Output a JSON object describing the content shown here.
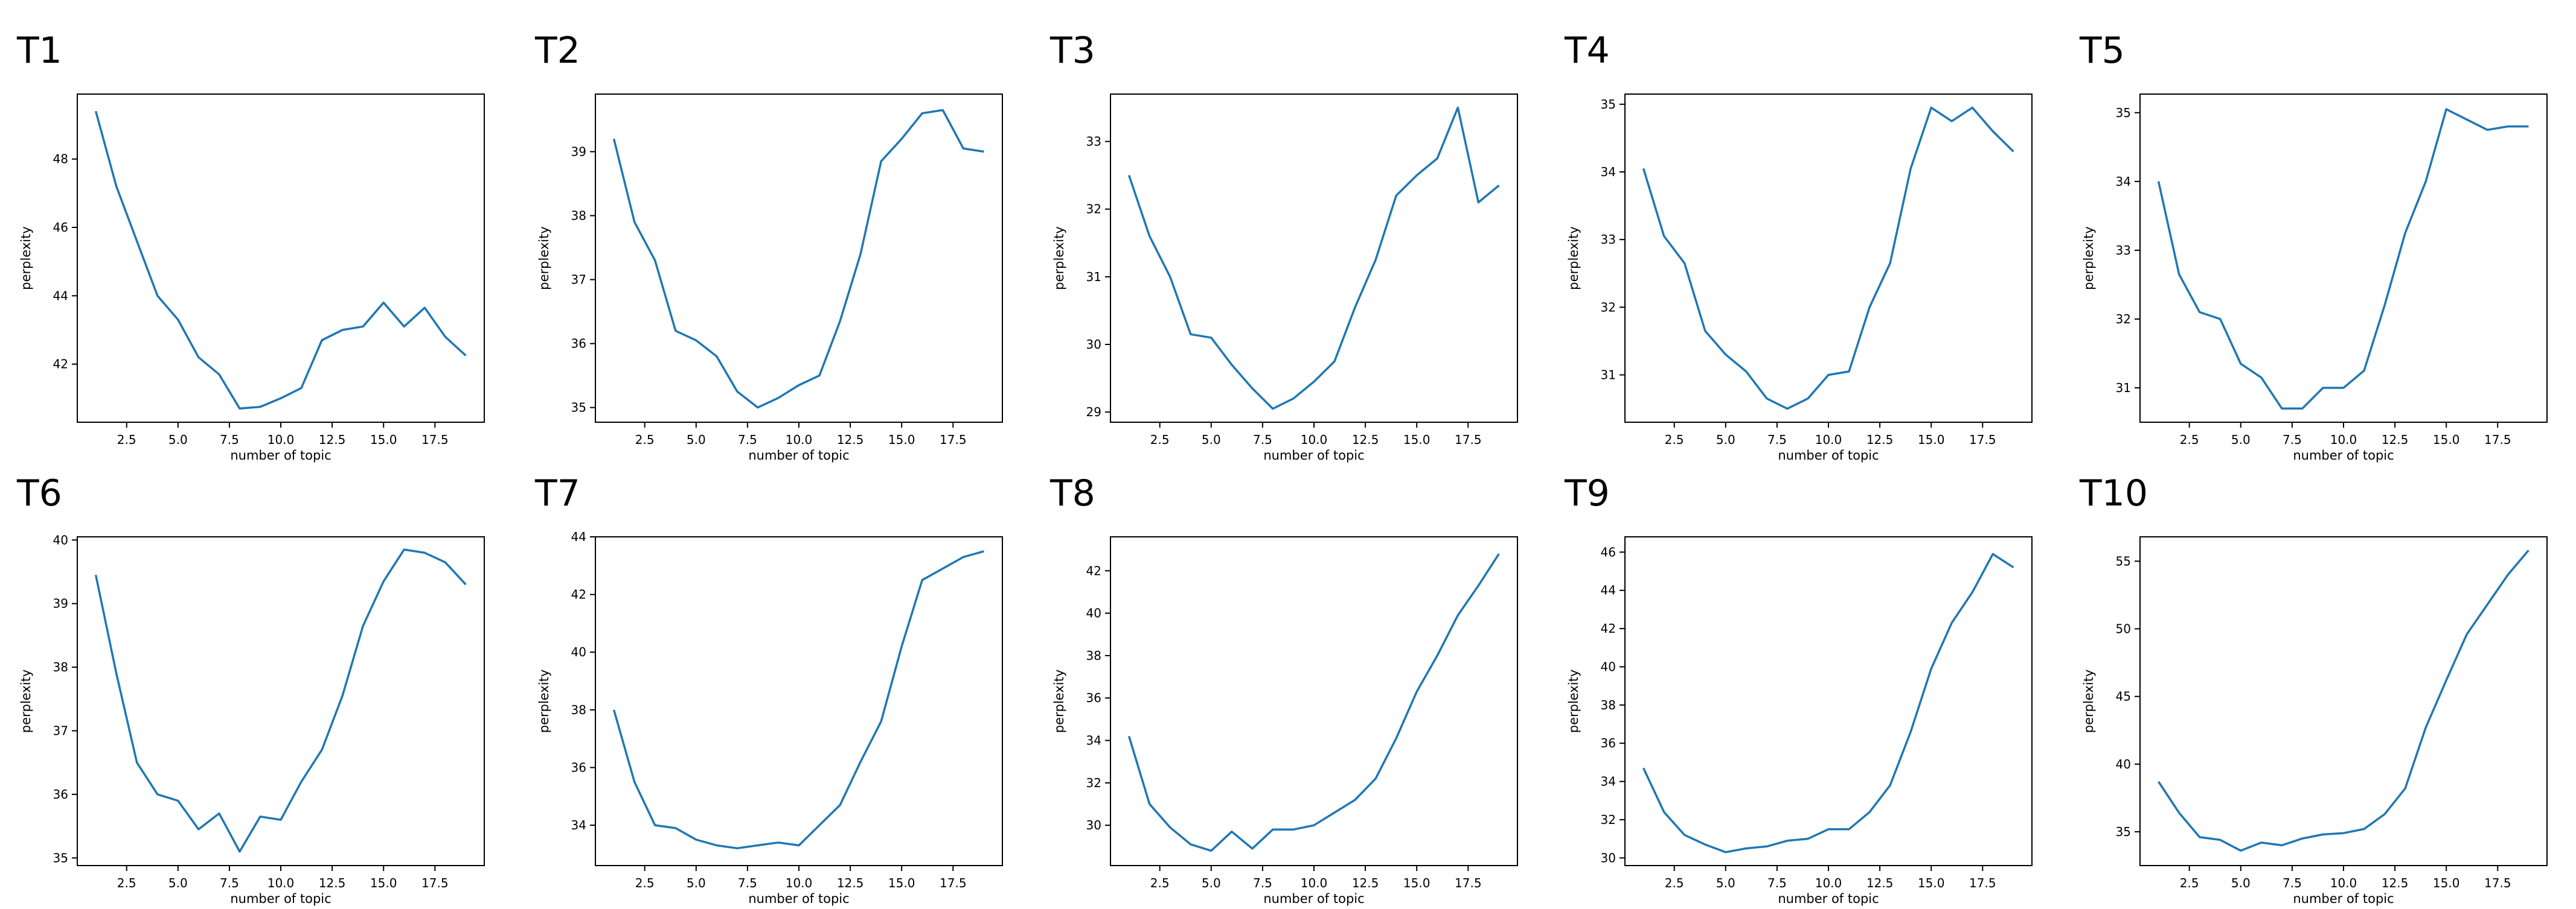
{
  "figure": {
    "line_color": "#1f77b4"
  },
  "chart_data": [
    {
      "type": "line",
      "title": "T1",
      "xlabel": "number of topic",
      "ylabel": "perplexity",
      "xlim": [
        0.1,
        19.9
      ],
      "ylim": [
        40.3,
        49.9
      ],
      "xticks": [
        2.5,
        5.0,
        7.5,
        10.0,
        12.5,
        15.0,
        17.5
      ],
      "yticks": [
        42,
        44,
        46,
        48
      ],
      "series": [
        {
          "x": [
            1,
            2,
            3,
            4,
            5,
            6,
            7,
            8,
            9,
            10,
            11,
            12,
            13,
            14,
            15,
            16,
            17,
            18,
            19
          ],
          "values": [
            49.4,
            47.2,
            45.6,
            44.0,
            43.3,
            42.2,
            41.7,
            40.7,
            40.75,
            41.0,
            41.3,
            42.7,
            43.0,
            43.1,
            43.8,
            43.1,
            43.65,
            42.8,
            42.25
          ]
        }
      ]
    },
    {
      "type": "line",
      "title": "T2",
      "xlabel": "number of topic",
      "ylabel": "perplexity",
      "xlim": [
        0.1,
        19.9
      ],
      "ylim": [
        34.77,
        39.9
      ],
      "xticks": [
        2.5,
        5.0,
        7.5,
        10.0,
        12.5,
        15.0,
        17.5
      ],
      "yticks": [
        35,
        36,
        37,
        38,
        39
      ],
      "series": [
        {
          "x": [
            1,
            2,
            3,
            4,
            5,
            6,
            7,
            8,
            9,
            10,
            11,
            12,
            13,
            14,
            15,
            16,
            17,
            18,
            19
          ],
          "values": [
            39.2,
            37.9,
            37.3,
            36.2,
            36.05,
            35.8,
            35.25,
            35.0,
            35.15,
            35.35,
            35.5,
            36.35,
            37.4,
            38.85,
            39.2,
            39.6,
            39.65,
            39.05,
            39.0
          ]
        }
      ]
    },
    {
      "type": "line",
      "title": "T3",
      "xlabel": "number of topic",
      "ylabel": "perplexity",
      "xlim": [
        0.1,
        19.9
      ],
      "ylim": [
        28.85,
        33.7
      ],
      "xticks": [
        2.5,
        5.0,
        7.5,
        10.0,
        12.5,
        15.0,
        17.5
      ],
      "yticks": [
        29,
        30,
        31,
        32,
        33
      ],
      "series": [
        {
          "x": [
            1,
            2,
            3,
            4,
            5,
            6,
            7,
            8,
            9,
            10,
            11,
            12,
            13,
            14,
            15,
            16,
            17,
            18,
            19
          ],
          "values": [
            32.5,
            31.6,
            31.0,
            30.15,
            30.1,
            29.7,
            29.35,
            29.05,
            29.2,
            29.45,
            29.75,
            30.55,
            31.25,
            32.2,
            32.5,
            32.75,
            33.5,
            32.1,
            32.35
          ]
        }
      ]
    },
    {
      "type": "line",
      "title": "T4",
      "xlabel": "number of topic",
      "ylabel": "perplexity",
      "xlim": [
        0.1,
        19.9
      ],
      "ylim": [
        30.3,
        35.15
      ],
      "xticks": [
        2.5,
        5.0,
        7.5,
        10.0,
        12.5,
        15.0,
        17.5
      ],
      "yticks": [
        31,
        32,
        33,
        34,
        35
      ],
      "series": [
        {
          "x": [
            1,
            2,
            3,
            4,
            5,
            6,
            7,
            8,
            9,
            10,
            11,
            12,
            13,
            14,
            15,
            16,
            17,
            18,
            19
          ],
          "values": [
            34.05,
            33.05,
            32.65,
            31.65,
            31.3,
            31.05,
            30.65,
            30.5,
            30.65,
            31.0,
            31.05,
            32.0,
            32.65,
            34.05,
            34.95,
            34.75,
            34.95,
            34.6,
            34.3
          ]
        }
      ]
    },
    {
      "type": "line",
      "title": "T5",
      "xlabel": "number of topic",
      "ylabel": "perplexity",
      "xlim": [
        0.1,
        19.9
      ],
      "ylim": [
        30.5,
        35.27
      ],
      "xticks": [
        2.5,
        5.0,
        7.5,
        10.0,
        12.5,
        15.0,
        17.5
      ],
      "yticks": [
        31,
        32,
        33,
        34,
        35
      ],
      "series": [
        {
          "x": [
            1,
            2,
            3,
            4,
            5,
            6,
            7,
            8,
            9,
            10,
            11,
            12,
            13,
            14,
            15,
            16,
            17,
            18,
            19
          ],
          "values": [
            34.0,
            32.65,
            32.1,
            32.0,
            31.35,
            31.15,
            30.7,
            30.7,
            31.0,
            31.0,
            31.25,
            32.2,
            33.25,
            34.0,
            35.05,
            34.9,
            34.75,
            34.8,
            34.8
          ]
        }
      ]
    },
    {
      "type": "line",
      "title": "T6",
      "xlabel": "number of topic",
      "ylabel": "perplexity",
      "xlim": [
        0.1,
        19.9
      ],
      "ylim": [
        34.88,
        40.05
      ],
      "xticks": [
        2.5,
        5.0,
        7.5,
        10.0,
        12.5,
        15.0,
        17.5
      ],
      "yticks": [
        35,
        36,
        37,
        38,
        39,
        40
      ],
      "series": [
        {
          "x": [
            1,
            2,
            3,
            4,
            5,
            6,
            7,
            8,
            9,
            10,
            11,
            12,
            13,
            14,
            15,
            16,
            17,
            18,
            19
          ],
          "values": [
            39.45,
            37.9,
            36.5,
            36.0,
            35.9,
            35.45,
            35.7,
            35.1,
            35.65,
            35.6,
            36.2,
            36.7,
            37.55,
            38.65,
            39.35,
            39.85,
            39.8,
            39.65,
            39.3
          ]
        }
      ]
    },
    {
      "type": "line",
      "title": "T7",
      "xlabel": "number of topic",
      "ylabel": "perplexity",
      "xlim": [
        0.1,
        19.9
      ],
      "ylim": [
        32.6,
        44.0
      ],
      "xticks": [
        2.5,
        5.0,
        7.5,
        10.0,
        12.5,
        15.0,
        17.5
      ],
      "yticks": [
        34,
        36,
        38,
        40,
        42,
        44
      ],
      "series": [
        {
          "x": [
            1,
            2,
            3,
            4,
            5,
            6,
            7,
            8,
            9,
            10,
            11,
            12,
            13,
            14,
            15,
            16,
            17,
            18,
            19
          ],
          "values": [
            38.0,
            35.5,
            34.0,
            33.9,
            33.5,
            33.3,
            33.2,
            33.3,
            33.4,
            33.3,
            34.0,
            34.7,
            36.2,
            37.6,
            40.2,
            42.5,
            42.9,
            43.3,
            43.5
          ]
        }
      ]
    },
    {
      "type": "line",
      "title": "T8",
      "xlabel": "number of topic",
      "ylabel": "perplexity",
      "xlim": [
        0.1,
        19.9
      ],
      "ylim": [
        28.1,
        43.6
      ],
      "xticks": [
        2.5,
        5.0,
        7.5,
        10.0,
        12.5,
        15.0,
        17.5
      ],
      "yticks": [
        30,
        32,
        34,
        36,
        38,
        40,
        42
      ],
      "series": [
        {
          "x": [
            1,
            2,
            3,
            4,
            5,
            6,
            7,
            8,
            9,
            10,
            11,
            12,
            13,
            14,
            15,
            16,
            17,
            18,
            19
          ],
          "values": [
            34.2,
            31.0,
            29.9,
            29.1,
            28.8,
            29.7,
            28.9,
            29.8,
            29.8,
            30.0,
            30.6,
            31.2,
            32.2,
            34.1,
            36.3,
            38.0,
            39.9,
            41.3,
            42.8
          ]
        }
      ]
    },
    {
      "type": "line",
      "title": "T9",
      "xlabel": "number of topic",
      "ylabel": "perplexity",
      "xlim": [
        0.1,
        19.9
      ],
      "ylim": [
        29.6,
        46.8
      ],
      "xticks": [
        2.5,
        5.0,
        7.5,
        10.0,
        12.5,
        15.0,
        17.5
      ],
      "yticks": [
        30,
        32,
        34,
        36,
        38,
        40,
        42,
        44,
        46
      ],
      "series": [
        {
          "x": [
            1,
            2,
            3,
            4,
            5,
            6,
            7,
            8,
            9,
            10,
            11,
            12,
            13,
            14,
            15,
            16,
            17,
            18,
            19
          ],
          "values": [
            34.7,
            32.4,
            31.2,
            30.7,
            30.3,
            30.5,
            30.6,
            30.9,
            31.0,
            31.5,
            31.5,
            32.4,
            33.8,
            36.6,
            39.9,
            42.3,
            43.9,
            45.9,
            45.2
          ]
        }
      ]
    },
    {
      "type": "line",
      "title": "T10",
      "xlabel": "number of topic",
      "ylabel": "perplexity",
      "xlim": [
        0.1,
        19.9
      ],
      "ylim": [
        32.5,
        56.8
      ],
      "xticks": [
        2.5,
        5.0,
        7.5,
        10.0,
        12.5,
        15.0,
        17.5
      ],
      "yticks": [
        35,
        40,
        45,
        50,
        55
      ],
      "series": [
        {
          "x": [
            1,
            2,
            3,
            4,
            5,
            6,
            7,
            8,
            9,
            10,
            11,
            12,
            13,
            14,
            15,
            16,
            17,
            18,
            19
          ],
          "values": [
            38.7,
            36.4,
            34.6,
            34.4,
            33.6,
            34.2,
            34.0,
            34.5,
            34.8,
            34.9,
            35.2,
            36.3,
            38.2,
            42.7,
            46.2,
            49.6,
            51.8,
            54.0,
            55.8
          ]
        }
      ]
    }
  ]
}
